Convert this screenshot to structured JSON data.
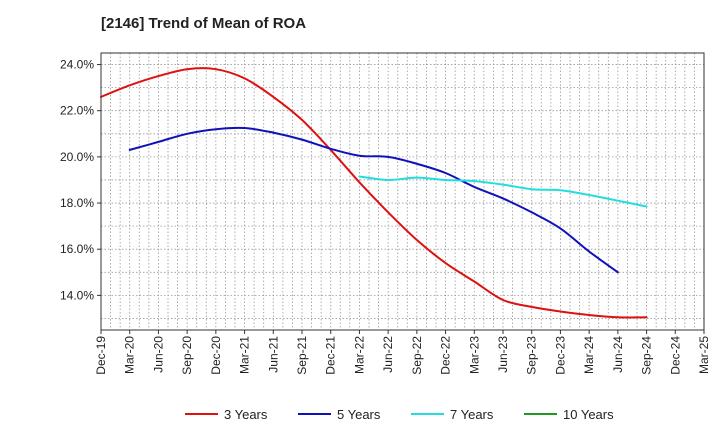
{
  "chart_data": {
    "type": "line",
    "title": "[2146]  Trend of Mean of ROA",
    "xlabel": "",
    "ylabel": "",
    "x_tick_labels": [
      "Dec-19",
      "Mar-20",
      "Jun-20",
      "Sep-20",
      "Dec-20",
      "Mar-21",
      "Jun-21",
      "Sep-21",
      "Dec-21",
      "Mar-22",
      "Jun-22",
      "Sep-22",
      "Dec-22",
      "Mar-23",
      "Jun-23",
      "Sep-23",
      "Dec-23",
      "Mar-24",
      "Jun-24",
      "Sep-24",
      "Dec-24",
      "Mar-25"
    ],
    "y_ticks": [
      14,
      16,
      18,
      20,
      22,
      24
    ],
    "y_tick_labels": [
      "14.0%",
      "16.0%",
      "18.0%",
      "20.0%",
      "22.0%",
      "24.0%"
    ],
    "ylim": [
      12.5,
      24.5
    ],
    "grid": true,
    "legend_position": "bottom",
    "series": [
      {
        "name": "3 Years",
        "color": "#dd1111",
        "values": [
          22.6,
          23.1,
          23.5,
          23.8,
          23.8,
          23.4,
          22.6,
          21.6,
          20.3,
          18.9,
          17.6,
          16.4,
          15.4,
          14.6,
          13.8,
          13.5,
          13.3,
          13.15,
          13.05,
          13.05
        ]
      },
      {
        "name": "5 Years",
        "color": "#1111bb",
        "values": [
          null,
          20.3,
          20.65,
          21.0,
          21.2,
          21.25,
          21.05,
          20.75,
          20.35,
          20.05,
          20.0,
          19.7,
          19.3,
          18.7,
          18.2,
          17.6,
          16.9,
          15.9,
          15.0
        ]
      },
      {
        "name": "7 Years",
        "color": "#22dddd",
        "values": [
          null,
          null,
          null,
          null,
          null,
          null,
          null,
          null,
          null,
          19.15,
          19.0,
          19.1,
          19.0,
          18.95,
          18.8,
          18.6,
          18.55,
          18.35,
          18.1,
          17.85
        ]
      },
      {
        "name": "10 Years",
        "color": "#229922",
        "values": []
      }
    ]
  }
}
